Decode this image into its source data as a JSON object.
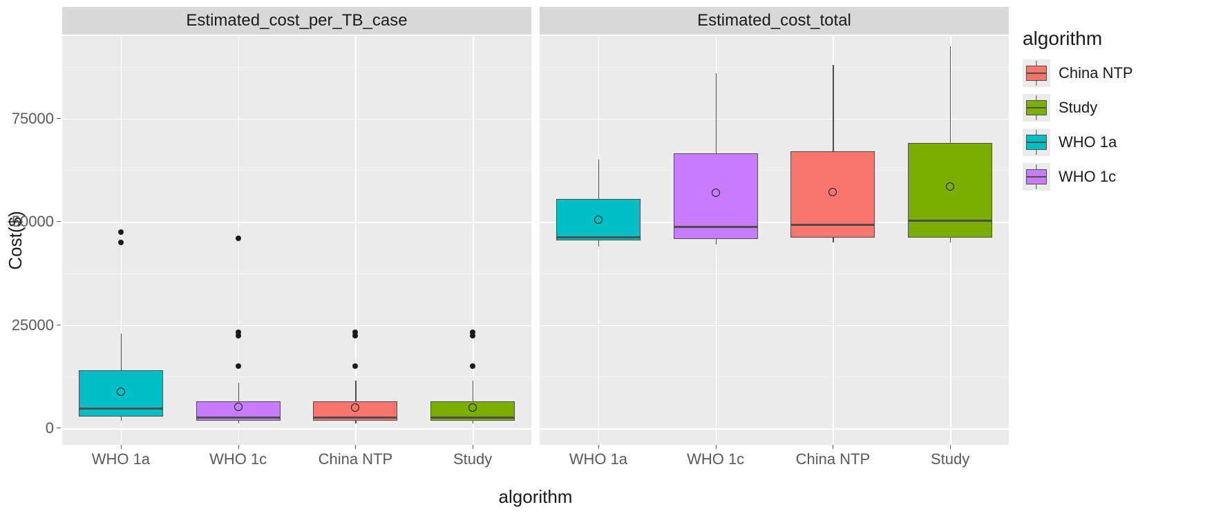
{
  "chart": {
    "type": "boxplot",
    "y_label": "Cost($)",
    "x_label": "algorithm",
    "y_label_fontsize": 26,
    "x_label_fontsize": 26,
    "tick_fontsize": 22,
    "facet_strip_fontsize": 24,
    "background_color": "#ebebeb",
    "strip_background_color": "#d9d9d9",
    "grid_color": "#ffffff",
    "grid_minor_color": "#f5f5f5",
    "box_border_color": "#4d4d4d",
    "ylim": [
      -4000,
      95000
    ],
    "y_ticks": [
      0,
      25000,
      50000,
      75000
    ],
    "y_minor_ticks": [
      12500,
      37500,
      62500,
      87500
    ],
    "categories": [
      "WHO 1a",
      "WHO 1c",
      "China NTP",
      "Study"
    ],
    "category_positions_pct": [
      12.5,
      37.5,
      62.5,
      87.5
    ],
    "box_width_pct": 18,
    "colors": {
      "China NTP": "#f8766d",
      "Study": "#7cae00",
      "WHO 1a": "#00bfc4",
      "WHO 1c": "#c77cff"
    },
    "facets": [
      {
        "title": "Estimated_cost_per_TB_case",
        "boxes": [
          {
            "cat": "WHO 1a",
            "low": 1800,
            "q1": 2800,
            "med": 5000,
            "q3": 14000,
            "high": 23000,
            "mean": 8800,
            "outliers": [
              45000,
              47500
            ]
          },
          {
            "cat": "WHO 1c",
            "low": 1200,
            "q1": 1800,
            "med": 2800,
            "q3": 6500,
            "high": 11000,
            "mean": 5200,
            "outliers": [
              15000,
              22500,
              23200,
              46000
            ]
          },
          {
            "cat": "China NTP",
            "low": 1200,
            "q1": 1800,
            "med": 2800,
            "q3": 6500,
            "high": 11500,
            "mean": 5000,
            "outliers": [
              15000,
              22500,
              23200
            ]
          },
          {
            "cat": "Study",
            "low": 1200,
            "q1": 1800,
            "med": 2800,
            "q3": 6500,
            "high": 11500,
            "mean": 5000,
            "outliers": [
              15000,
              22500,
              23200
            ]
          }
        ]
      },
      {
        "title": "Estimated_cost_total",
        "boxes": [
          {
            "cat": "WHO 1a",
            "low": 44000,
            "q1": 45500,
            "med": 46500,
            "q3": 55500,
            "high": 65000,
            "mean": 50500,
            "outliers": []
          },
          {
            "cat": "WHO 1c",
            "low": 44500,
            "q1": 45800,
            "med": 49000,
            "q3": 66500,
            "high": 86000,
            "mean": 57000,
            "outliers": []
          },
          {
            "cat": "China NTP",
            "low": 45000,
            "q1": 46200,
            "med": 49500,
            "q3": 67000,
            "high": 88000,
            "mean": 57200,
            "outliers": []
          },
          {
            "cat": "Study",
            "low": 45000,
            "q1": 46200,
            "med": 50500,
            "q3": 69000,
            "high": 92500,
            "mean": 58500,
            "outliers": []
          }
        ]
      }
    ],
    "legend": {
      "title": "algorithm",
      "title_fontsize": 28,
      "label_fontsize": 22,
      "items": [
        "China NTP",
        "Study",
        "WHO 1a",
        "WHO 1c"
      ]
    }
  }
}
